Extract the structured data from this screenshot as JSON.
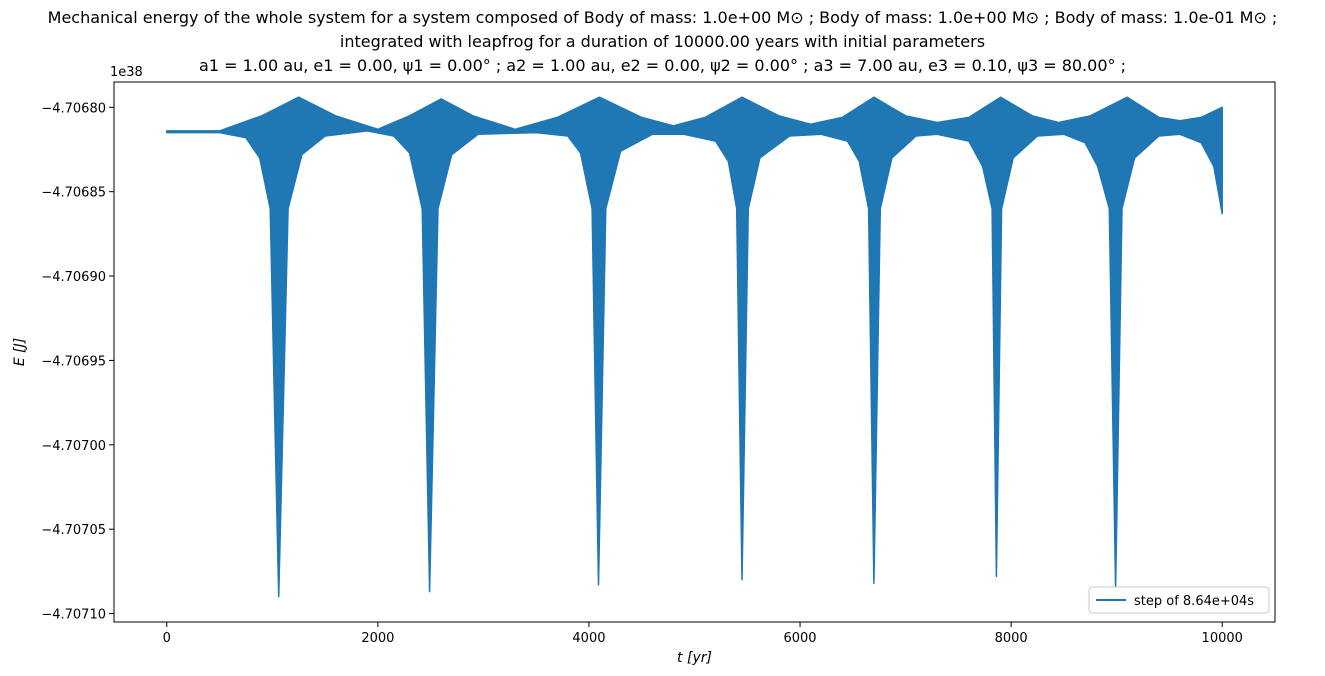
{
  "chart_data": {
    "type": "line",
    "title_lines": [
      "Mechanical energy of the whole system for a system composed of Body of mass: 1.0e+00 M⊙ ; Body of mass: 1.0e+00 M⊙ ; Body of mass: 1.0e-01 M⊙ ;",
      "integrated with leapfrog for a duration of 10000.00 years with initial parameters",
      "a1 = 1.00 au, e1 = 0.00, ψ1 = 0.00° ; a2 = 1.00 au, e2 = 0.00, ψ2 = 0.00° ; a3 = 7.00 au, e3 = 0.10, ψ3 = 80.00° ;"
    ],
    "xlabel": "t [yr]",
    "ylabel": "E [J]",
    "y_offset_text": "1e38",
    "xlim": [
      -500,
      10500
    ],
    "ylim": [
      -4.707105,
      -4.706785
    ],
    "x_ticks": [
      0,
      2000,
      4000,
      6000,
      8000,
      10000
    ],
    "x_tick_labels": [
      "0",
      "2000",
      "4000",
      "6000",
      "8000",
      "10000"
    ],
    "y_ticks": [
      -4.7068,
      -4.70685,
      -4.7069,
      -4.70695,
      -4.707,
      -4.70705,
      -4.7071
    ],
    "y_tick_labels": [
      "−4.70680",
      "−4.70685",
      "−4.70690",
      "−4.70695",
      "−4.70700",
      "−4.70705",
      "−4.70710"
    ],
    "grid": false,
    "legend_position": "lower-right",
    "series": [
      {
        "name": "step of 8.64e+04s",
        "color": "#1f77b4",
        "envelope_upper": [
          [
            0,
            -4.706814
          ],
          [
            500,
            -4.706814
          ],
          [
            900,
            -4.706805
          ],
          [
            1250,
            -4.706794
          ],
          [
            1600,
            -4.706805
          ],
          [
            2000,
            -4.706813
          ],
          [
            2300,
            -4.706805
          ],
          [
            2600,
            -4.706795
          ],
          [
            2900,
            -4.706805
          ],
          [
            3300,
            -4.706813
          ],
          [
            3700,
            -4.706806
          ],
          [
            4100,
            -4.706794
          ],
          [
            4500,
            -4.706806
          ],
          [
            4800,
            -4.706811
          ],
          [
            5100,
            -4.706806
          ],
          [
            5450,
            -4.706794
          ],
          [
            5800,
            -4.706805
          ],
          [
            6100,
            -4.70681
          ],
          [
            6400,
            -4.706806
          ],
          [
            6700,
            -4.706794
          ],
          [
            7000,
            -4.706805
          ],
          [
            7300,
            -4.706809
          ],
          [
            7600,
            -4.706806
          ],
          [
            7900,
            -4.706794
          ],
          [
            8200,
            -4.706805
          ],
          [
            8450,
            -4.706809
          ],
          [
            8750,
            -4.706805
          ],
          [
            9100,
            -4.706794
          ],
          [
            9400,
            -4.706806
          ],
          [
            9600,
            -4.706808
          ],
          [
            9800,
            -4.706806
          ],
          [
            10000,
            -4.7068
          ]
        ],
        "envelope_lower": [
          [
            0,
            -4.706815
          ],
          [
            500,
            -4.706815
          ],
          [
            750,
            -4.706818
          ],
          [
            880,
            -4.70683
          ],
          [
            980,
            -4.70686
          ],
          [
            1060,
            -4.70709
          ],
          [
            1150,
            -4.70686
          ],
          [
            1280,
            -4.706828
          ],
          [
            1500,
            -4.706817
          ],
          [
            1900,
            -4.706814
          ],
          [
            2150,
            -4.706817
          ],
          [
            2300,
            -4.706827
          ],
          [
            2420,
            -4.70686
          ],
          [
            2490,
            -4.707087
          ],
          [
            2570,
            -4.70686
          ],
          [
            2700,
            -4.706828
          ],
          [
            2950,
            -4.706816
          ],
          [
            3500,
            -4.706815
          ],
          [
            3800,
            -4.706817
          ],
          [
            3920,
            -4.706827
          ],
          [
            4030,
            -4.70686
          ],
          [
            4090,
            -4.707083
          ],
          [
            4160,
            -4.70686
          ],
          [
            4300,
            -4.706826
          ],
          [
            4600,
            -4.706816
          ],
          [
            4900,
            -4.706816
          ],
          [
            5200,
            -4.70682
          ],
          [
            5320,
            -4.706832
          ],
          [
            5400,
            -4.70686
          ],
          [
            5450,
            -4.70708
          ],
          [
            5510,
            -4.70686
          ],
          [
            5620,
            -4.70683
          ],
          [
            5900,
            -4.706817
          ],
          [
            6200,
            -4.706816
          ],
          [
            6450,
            -4.70682
          ],
          [
            6560,
            -4.706832
          ],
          [
            6650,
            -4.70686
          ],
          [
            6700,
            -4.707082
          ],
          [
            6760,
            -4.70686
          ],
          [
            6870,
            -4.70683
          ],
          [
            7100,
            -4.706817
          ],
          [
            7300,
            -4.706816
          ],
          [
            7600,
            -4.70682
          ],
          [
            7730,
            -4.706835
          ],
          [
            7820,
            -4.70686
          ],
          [
            7860,
            -4.707078
          ],
          [
            7910,
            -4.70686
          ],
          [
            8020,
            -4.70683
          ],
          [
            8250,
            -4.706817
          ],
          [
            8500,
            -4.706816
          ],
          [
            8700,
            -4.706821
          ],
          [
            8820,
            -4.706835
          ],
          [
            8930,
            -4.70686
          ],
          [
            8990,
            -4.707085
          ],
          [
            9050,
            -4.70686
          ],
          [
            9170,
            -4.70683
          ],
          [
            9400,
            -4.706817
          ],
          [
            9600,
            -4.706816
          ],
          [
            9800,
            -4.706821
          ],
          [
            9920,
            -4.706835
          ],
          [
            10000,
            -4.706863
          ]
        ]
      }
    ]
  }
}
